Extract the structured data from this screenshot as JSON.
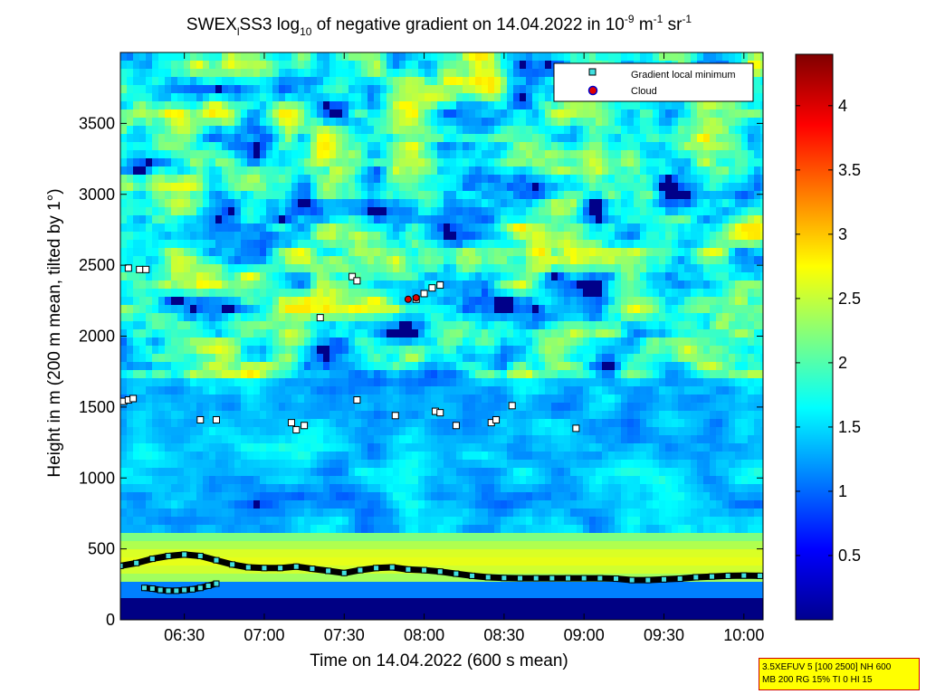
{
  "chart_data": {
    "type": "heatmap",
    "title": {
      "part1": "SWEX",
      "part1_sub": "l",
      "part2": "SS3 log",
      "part2_sub": "10",
      "part3": " of negative gradient on 14.04.2022 in 10",
      "part3_sup": "-9",
      "part4": " m",
      "part4_sup": "-1",
      "part5": " sr",
      "part5_sup": "-1"
    },
    "xlabel": "Time on 14.04.2022 (600 s mean)",
    "ylabel": "Height in m (200 m mean, tilted by 1°)",
    "x_unit": "hours",
    "xlim": [
      6.1,
      10.12
    ],
    "ylim": [
      0,
      4000
    ],
    "x_ticks": [
      {
        "value": 6.5,
        "label": "06:30"
      },
      {
        "value": 7.0,
        "label": "07:00"
      },
      {
        "value": 7.5,
        "label": "07:30"
      },
      {
        "value": 8.0,
        "label": "08:00"
      },
      {
        "value": 8.5,
        "label": "08:30"
      },
      {
        "value": 9.0,
        "label": "09:00"
      },
      {
        "value": 9.5,
        "label": "09:30"
      },
      {
        "value": 10.0,
        "label": "10:00"
      }
    ],
    "y_ticks": [
      {
        "value": 0,
        "label": "0"
      },
      {
        "value": 500,
        "label": "500"
      },
      {
        "value": 1000,
        "label": "1000"
      },
      {
        "value": 1500,
        "label": "1500"
      },
      {
        "value": 2000,
        "label": "2000"
      },
      {
        "value": 2500,
        "label": "2500"
      },
      {
        "value": 3000,
        "label": "3000"
      },
      {
        "value": 3500,
        "label": "3500"
      }
    ],
    "colorbar": {
      "colormap": "jet",
      "range": [
        0,
        4.4
      ],
      "ticks": [
        {
          "value": 0.5,
          "label": "0.5"
        },
        {
          "value": 1,
          "label": "1"
        },
        {
          "value": 1.5,
          "label": "1.5"
        },
        {
          "value": 2,
          "label": "2"
        },
        {
          "value": 2.5,
          "label": "2.5"
        },
        {
          "value": 3,
          "label": "3"
        },
        {
          "value": 3.5,
          "label": "3.5"
        },
        {
          "value": 4,
          "label": "4"
        }
      ]
    },
    "legend": {
      "placement": "top-right",
      "entries": [
        {
          "label": "Gradient local minimum",
          "marker": "square",
          "color": "#40e0e0"
        },
        {
          "label": "Cloud",
          "marker": "circle",
          "color": "#e00000"
        }
      ]
    },
    "gradient_minima_layer1": [
      [
        6.1,
        380
      ],
      [
        6.2,
        400
      ],
      [
        6.3,
        430
      ],
      [
        6.4,
        450
      ],
      [
        6.5,
        460
      ],
      [
        6.6,
        450
      ],
      [
        6.7,
        420
      ],
      [
        6.8,
        390
      ],
      [
        6.9,
        370
      ],
      [
        7.0,
        365
      ],
      [
        7.1,
        365
      ],
      [
        7.2,
        375
      ],
      [
        7.3,
        360
      ],
      [
        7.4,
        345
      ],
      [
        7.5,
        330
      ],
      [
        7.6,
        350
      ],
      [
        7.7,
        365
      ],
      [
        7.8,
        370
      ],
      [
        7.9,
        355
      ],
      [
        8.0,
        350
      ],
      [
        8.1,
        340
      ],
      [
        8.2,
        325
      ],
      [
        8.3,
        310
      ],
      [
        8.4,
        300
      ],
      [
        8.5,
        295
      ],
      [
        8.6,
        293
      ],
      [
        8.7,
        293
      ],
      [
        8.8,
        293
      ],
      [
        8.9,
        293
      ],
      [
        9.0,
        293
      ],
      [
        9.1,
        293
      ],
      [
        9.2,
        290
      ],
      [
        9.3,
        280
      ],
      [
        9.4,
        280
      ],
      [
        9.5,
        285
      ],
      [
        9.6,
        290
      ],
      [
        9.7,
        300
      ],
      [
        9.8,
        305
      ],
      [
        9.9,
        310
      ],
      [
        10.0,
        312
      ],
      [
        10.1,
        310
      ]
    ],
    "gradient_minima_layer2": [
      [
        6.25,
        225
      ],
      [
        6.3,
        220
      ],
      [
        6.35,
        210
      ],
      [
        6.4,
        205
      ],
      [
        6.45,
        205
      ],
      [
        6.5,
        210
      ],
      [
        6.55,
        215
      ],
      [
        6.6,
        225
      ],
      [
        6.65,
        240
      ],
      [
        6.7,
        255
      ]
    ],
    "gradient_minima_isolated": [
      [
        6.15,
        2480
      ],
      [
        6.22,
        2470
      ],
      [
        6.26,
        2470
      ],
      [
        6.12,
        1540
      ],
      [
        6.15,
        1550
      ],
      [
        6.18,
        1560
      ],
      [
        6.6,
        1410
      ],
      [
        6.7,
        1410
      ],
      [
        7.17,
        1390
      ],
      [
        7.2,
        1340
      ],
      [
        7.25,
        1370
      ],
      [
        7.35,
        2130
      ],
      [
        7.55,
        2420
      ],
      [
        7.58,
        2390
      ],
      [
        7.58,
        1550
      ],
      [
        7.82,
        1440
      ],
      [
        7.95,
        2260
      ],
      [
        8.0,
        2300
      ],
      [
        8.05,
        2340
      ],
      [
        8.1,
        2360
      ],
      [
        8.07,
        1470
      ],
      [
        8.1,
        1460
      ],
      [
        8.2,
        1370
      ],
      [
        8.42,
        1390
      ],
      [
        8.45,
        1410
      ],
      [
        8.55,
        1510
      ],
      [
        8.95,
        1350
      ]
    ],
    "clouds": [
      [
        7.9,
        2260
      ],
      [
        7.95,
        2270
      ]
    ]
  },
  "info_box": {
    "line1": "3.5XEFUV 5 [100 2500] NH 600",
    "line2": "MB 200 RG 15% TI 0 HI 15"
  }
}
